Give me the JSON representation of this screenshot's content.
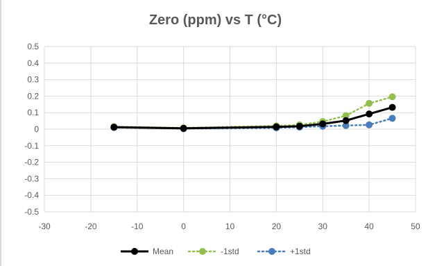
{
  "chart_data": {
    "type": "line",
    "title": "Zero (ppm) vs T (°C)",
    "xlabel": "",
    "ylabel": "",
    "xlim": [
      -30,
      50
    ],
    "ylim": [
      -0.5,
      0.5
    ],
    "xticks": [
      -30,
      -20,
      -10,
      0,
      10,
      20,
      30,
      40,
      50
    ],
    "yticks": [
      -0.5,
      -0.4,
      -0.3,
      -0.2,
      -0.1,
      0,
      0.1,
      0.2,
      0.3,
      0.4,
      0.5
    ],
    "grid": true,
    "legend_position": "bottom",
    "series": [
      {
        "name": "Mean",
        "color": "#000000",
        "style": "solid",
        "points": [
          [
            -15,
            0.012
          ],
          [
            0,
            0.005
          ],
          [
            20,
            0.014
          ],
          [
            25,
            0.018
          ],
          [
            30,
            0.032
          ],
          [
            35,
            0.052
          ],
          [
            40,
            0.092
          ],
          [
            45,
            0.132
          ]
        ]
      },
      {
        "name": "-1std",
        "color": "#92c050",
        "style": "dotted",
        "points": [
          [
            -15,
            0.015
          ],
          [
            0,
            0.008
          ],
          [
            20,
            0.02
          ],
          [
            25,
            0.026
          ],
          [
            30,
            0.046
          ],
          [
            35,
            0.082
          ],
          [
            40,
            0.156
          ],
          [
            45,
            0.196
          ]
        ]
      },
      {
        "name": "+1std",
        "color": "#4a7ebb",
        "style": "dotted",
        "points": [
          [
            -15,
            0.01
          ],
          [
            0,
            0.003
          ],
          [
            20,
            0.008
          ],
          [
            25,
            0.012
          ],
          [
            30,
            0.018
          ],
          [
            35,
            0.022
          ],
          [
            40,
            0.026
          ],
          [
            45,
            0.066
          ]
        ]
      }
    ]
  }
}
